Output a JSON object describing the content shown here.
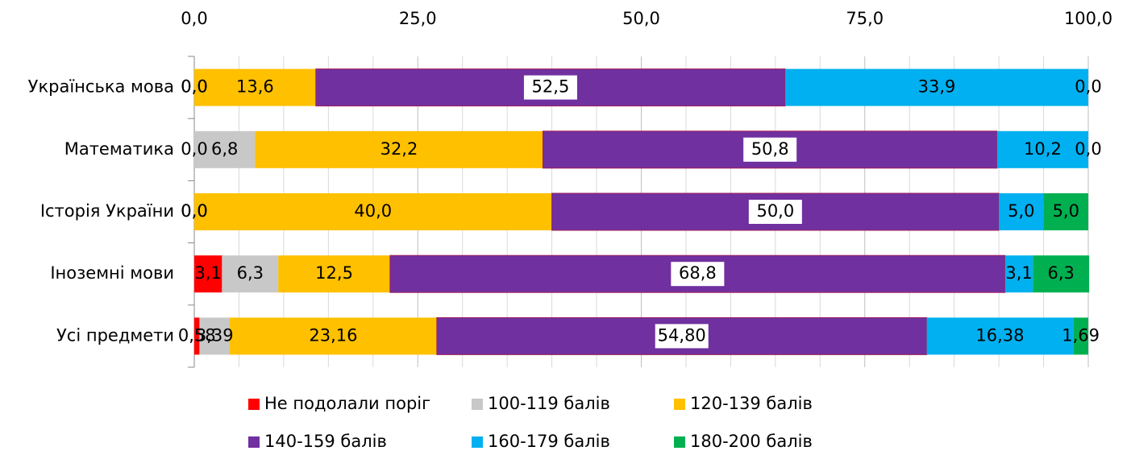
{
  "chart_data": {
    "type": "stacked-barh",
    "categories": [
      "Українська мова",
      "Математика",
      "Історія України",
      "Іноземні мови",
      "Усі предмети"
    ],
    "series": [
      {
        "name": "Не подолали поріг",
        "color": "#ff0000",
        "values": [
          0.0,
          0.0,
          0.0,
          3.1,
          0.58
        ],
        "value_labels": [
          "0,0",
          "0,0",
          "0,0",
          "3,1",
          "0,58"
        ]
      },
      {
        "name": "100-119 балів",
        "color": "#c8c8c8",
        "values": [
          0.0,
          6.8,
          0.0,
          6.3,
          3.39
        ],
        "value_labels": [
          "0,0",
          "6,8",
          "0,0",
          "6,3",
          "3,39"
        ]
      },
      {
        "name": "120-139 балів",
        "color": "#ffc000",
        "values": [
          13.6,
          32.2,
          40.0,
          12.5,
          23.16
        ],
        "value_labels": [
          "13,6",
          "32,2",
          "40,0",
          "12,5",
          "23,16"
        ]
      },
      {
        "name": "140-159 балів",
        "color": "#7030a0",
        "values": [
          52.5,
          50.8,
          50.0,
          68.8,
          54.8
        ],
        "value_labels": [
          "52,5",
          "50,8",
          "50,0",
          "68,8",
          "54,80"
        ]
      },
      {
        "name": "160-179 балів",
        "color": "#00b0f0",
        "values": [
          33.9,
          10.2,
          5.0,
          3.1,
          16.38
        ],
        "value_labels": [
          "33,9",
          "10,2",
          "5,0",
          "3,1",
          "16,38"
        ]
      },
      {
        "name": "180-200 балів",
        "color": "#00b050",
        "values": [
          0.0,
          0.0,
          5.0,
          6.3,
          1.69
        ],
        "value_labels": [
          "0,0",
          "0,0",
          "5,0",
          "6,3",
          "1,69"
        ]
      }
    ],
    "xlim": [
      0,
      100
    ],
    "xticks": [
      {
        "value": 0,
        "label": "0,0"
      },
      {
        "value": 25,
        "label": "25,0"
      },
      {
        "value": 50,
        "label": "50,0"
      },
      {
        "value": 75,
        "label": "75,0"
      },
      {
        "value": 100,
        "label": "100,0"
      }
    ],
    "xminorticks": [
      5,
      10,
      15,
      20,
      30,
      35,
      40,
      45,
      55,
      60,
      65,
      70,
      80,
      85,
      90,
      95
    ],
    "grid": true,
    "legend": "bottom"
  }
}
